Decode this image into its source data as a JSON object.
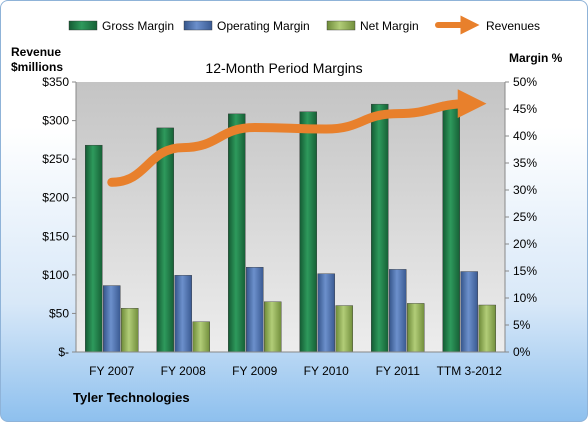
{
  "company": "Tyler Technologies",
  "chart_data": {
    "type": "bar",
    "title": "12-Month Period Margins",
    "categories": [
      "FY 2007",
      "FY 2008",
      "FY 2009",
      "FY 2010",
      "FY 2011",
      "TTM 3-2012"
    ],
    "series": [
      {
        "name": "Gross Margin",
        "axis": "right",
        "color": "#1e7b47",
        "values": [
          38.3,
          41.5,
          44.1,
          44.5,
          45.9,
          46.3
        ]
      },
      {
        "name": "Operating Margin",
        "axis": "right",
        "color": "#4f74b0",
        "values": [
          12.3,
          14.2,
          15.7,
          14.5,
          15.3,
          14.9
        ]
      },
      {
        "name": "Net Margin",
        "axis": "right",
        "color": "#8fae52",
        "values": [
          8.1,
          5.6,
          9.3,
          8.6,
          9.0,
          8.7
        ]
      },
      {
        "name": "Revenues",
        "axis": "left",
        "type": "line",
        "color": "#e8802c",
        "values": [
          220,
          265,
          291,
          289,
          309,
          322
        ]
      }
    ],
    "y_left": {
      "label_line1": "Revenue",
      "label_line2": "$millions",
      "ylim": [
        0,
        350
      ],
      "ticks": [
        "$-",
        "$50",
        "$100",
        "$150",
        "$200",
        "$250",
        "$300",
        "$350"
      ]
    },
    "y_right": {
      "label": "Margin %",
      "ylim": [
        0,
        50
      ],
      "ticks": [
        "0%",
        "5%",
        "10%",
        "15%",
        "20%",
        "25%",
        "30%",
        "35%",
        "40%",
        "45%",
        "50%"
      ]
    },
    "legend_position": "top",
    "grid": false
  }
}
